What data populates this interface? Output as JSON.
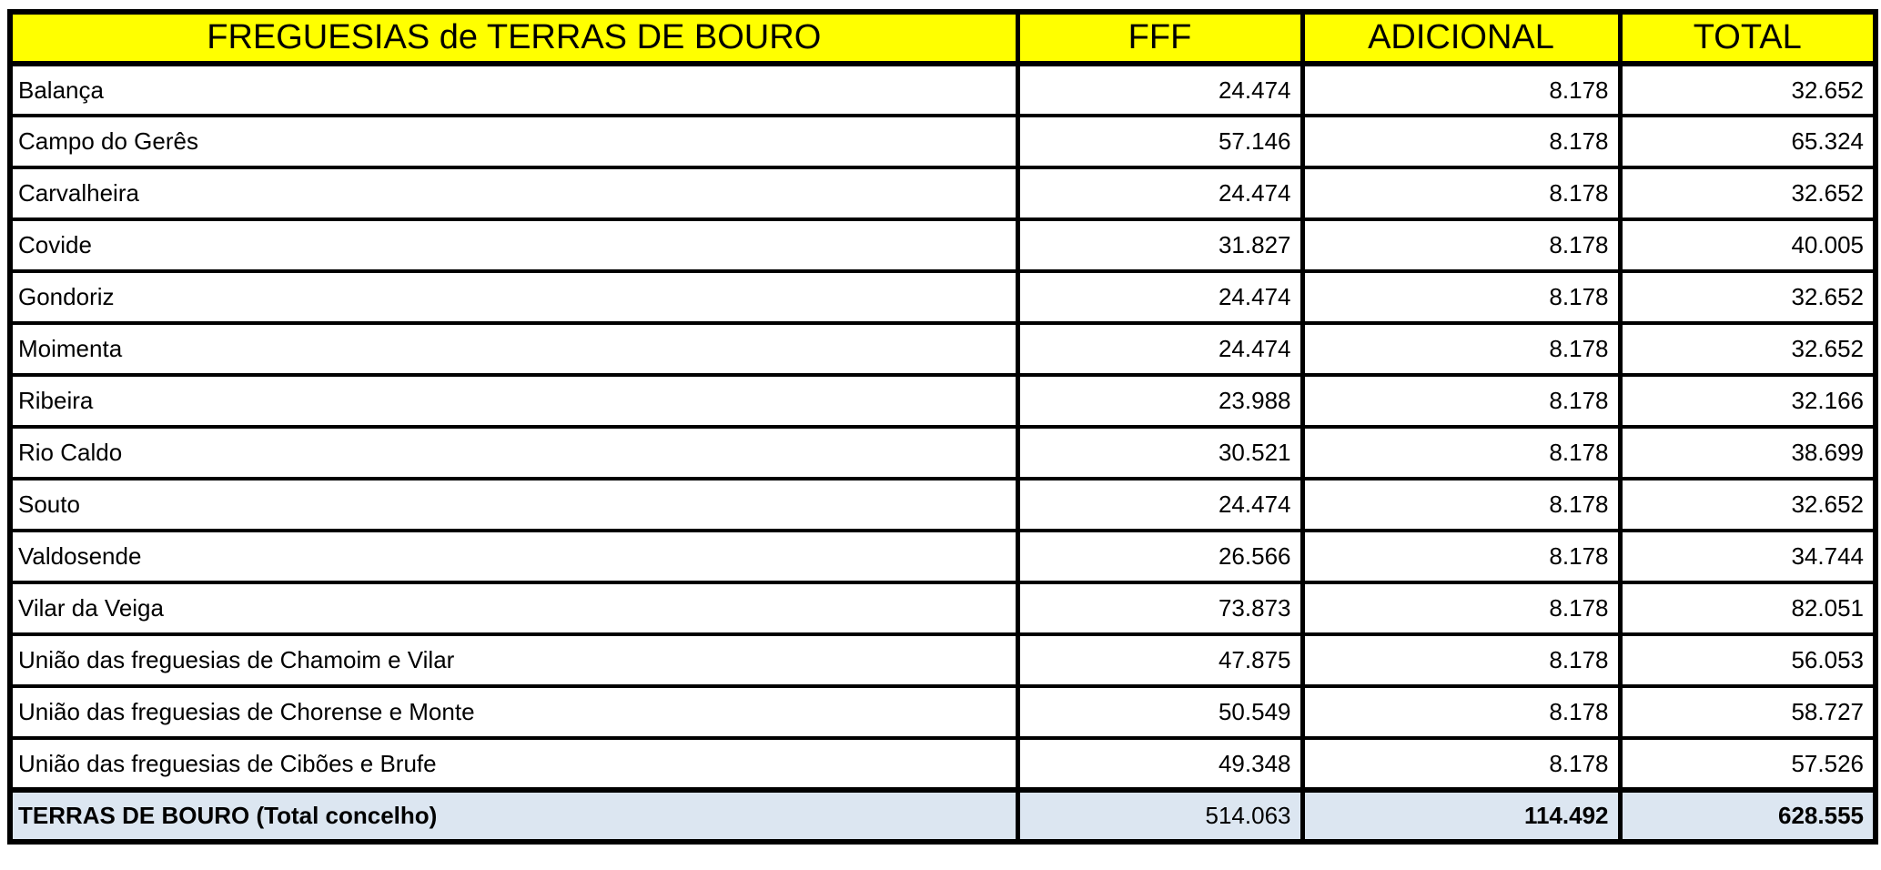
{
  "colors": {
    "header_bg": "#ffff00",
    "total_row_bg": "#dce6f1",
    "border": "#000000",
    "text": "#000000"
  },
  "table": {
    "headers": {
      "freguesias": "FREGUESIAS de TERRAS DE BOURO",
      "fff": "FFF",
      "adicional": "ADICIONAL",
      "total": "TOTAL"
    },
    "rows": [
      {
        "name": "Balança",
        "fff": "24.474",
        "adicional": "8.178",
        "total": "32.652"
      },
      {
        "name": "Campo do Gerês",
        "fff": "57.146",
        "adicional": "8.178",
        "total": "65.324"
      },
      {
        "name": "Carvalheira",
        "fff": "24.474",
        "adicional": "8.178",
        "total": "32.652"
      },
      {
        "name": "Covide",
        "fff": "31.827",
        "adicional": "8.178",
        "total": "40.005"
      },
      {
        "name": "Gondoriz",
        "fff": "24.474",
        "adicional": "8.178",
        "total": "32.652"
      },
      {
        "name": "Moimenta",
        "fff": "24.474",
        "adicional": "8.178",
        "total": "32.652"
      },
      {
        "name": "Ribeira",
        "fff": "23.988",
        "adicional": "8.178",
        "total": "32.166"
      },
      {
        "name": "Rio Caldo",
        "fff": "30.521",
        "adicional": "8.178",
        "total": "38.699"
      },
      {
        "name": "Souto",
        "fff": "24.474",
        "adicional": "8.178",
        "total": "32.652"
      },
      {
        "name": "Valdosende",
        "fff": "26.566",
        "adicional": "8.178",
        "total": "34.744"
      },
      {
        "name": "Vilar da Veiga",
        "fff": "73.873",
        "adicional": "8.178",
        "total": "82.051"
      },
      {
        "name": "União das freguesias de Chamoim e Vilar",
        "fff": "47.875",
        "adicional": "8.178",
        "total": "56.053"
      },
      {
        "name": "União das freguesias de Chorense e Monte",
        "fff": "50.549",
        "adicional": "8.178",
        "total": "58.727"
      },
      {
        "name": "União das freguesias de Cibões e Brufe",
        "fff": "49.348",
        "adicional": "8.178",
        "total": "57.526"
      }
    ],
    "total_row": {
      "name": "TERRAS DE BOURO (Total concelho)",
      "fff": "514.063",
      "adicional": "114.492",
      "total": "628.555"
    }
  }
}
